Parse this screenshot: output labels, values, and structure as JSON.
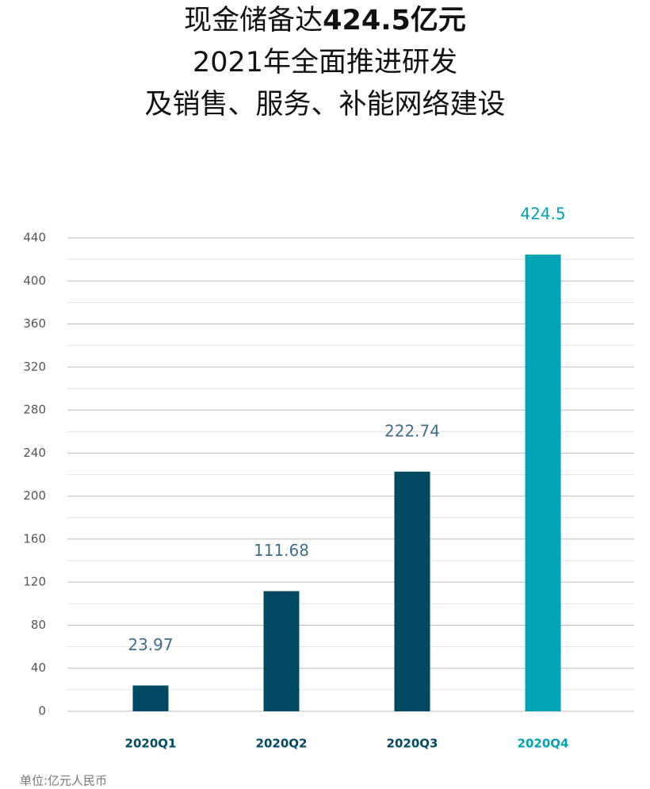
{
  "chart_data": {
    "type": "bar",
    "title": {
      "lines": [
        [
          "现金储备达",
          "424.5亿元"
        ],
        [
          "2021年全面推进研发"
        ],
        [
          "及销售、服务、补能网络建设"
        ]
      ]
    },
    "categories": [
      "2020Q1",
      "2020Q2",
      "2020Q3",
      "2020Q4"
    ],
    "values": [
      23.97,
      111.68,
      222.74,
      424.5
    ],
    "colors": [
      "#004a63",
      "#004a63",
      "#004a63",
      "#00a3b4"
    ],
    "ylim": [
      0,
      440
    ],
    "yticks": [
      0,
      40,
      80,
      120,
      160,
      200,
      240,
      280,
      320,
      360,
      400,
      440
    ],
    "minor_yticks": [
      20,
      60,
      100,
      140,
      180,
      220,
      260,
      300,
      340,
      380,
      420
    ],
    "grid": true,
    "footnote": "单位:亿元人民币"
  }
}
